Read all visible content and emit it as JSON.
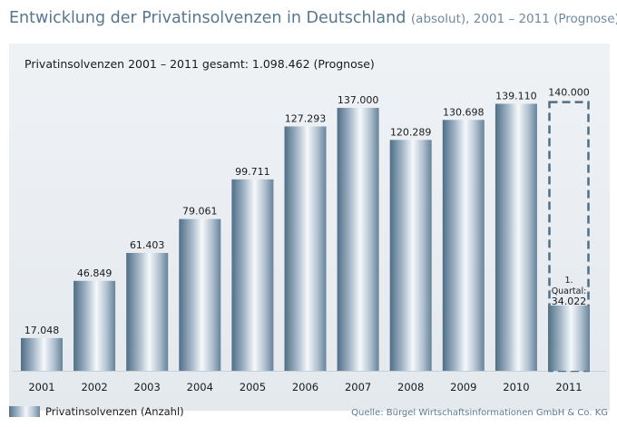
{
  "title": {
    "main": "Entwicklung der Privatinsolvenzen in Deutschland",
    "sub": "(absolut), 2001 – 2011 (Prognose)"
  },
  "total_label": "Privatinsolvenzen 2001 – 2011 gesamt: 1.098.462 (Prognose)",
  "legend_label": "Privatinsolvenzen (Anzahl)",
  "source": "Quelle: Bürgel Wirtschaftsinformationen GmbH & Co. KG",
  "colors": {
    "bar_dark": "#4f6e86",
    "bar_light": "#f6f9fb",
    "forecast_stroke": "#4f6e86",
    "title": "#56778f"
  },
  "chart_data": {
    "type": "bar",
    "categories": [
      "2001",
      "2002",
      "2003",
      "2004",
      "2005",
      "2006",
      "2007",
      "2008",
      "2009",
      "2010",
      "2011"
    ],
    "values": [
      17048,
      46849,
      61403,
      79061,
      99711,
      127293,
      137000,
      120289,
      130698,
      139110,
      34022
    ],
    "value_labels": [
      "17.048",
      "46.849",
      "61.403",
      "79.061",
      "99.711",
      "127.293",
      "137.000",
      "120.289",
      "130.698",
      "139.110",
      "34.022"
    ],
    "forecast": {
      "category": "2011",
      "value": 140000,
      "value_label": "140.000",
      "partial_value": 34022,
      "partial_note_line1": "1.",
      "partial_note_line2": "Quartal:"
    },
    "ylim": [
      0,
      145000
    ],
    "grid": false,
    "legend_position": "bottom-left"
  }
}
